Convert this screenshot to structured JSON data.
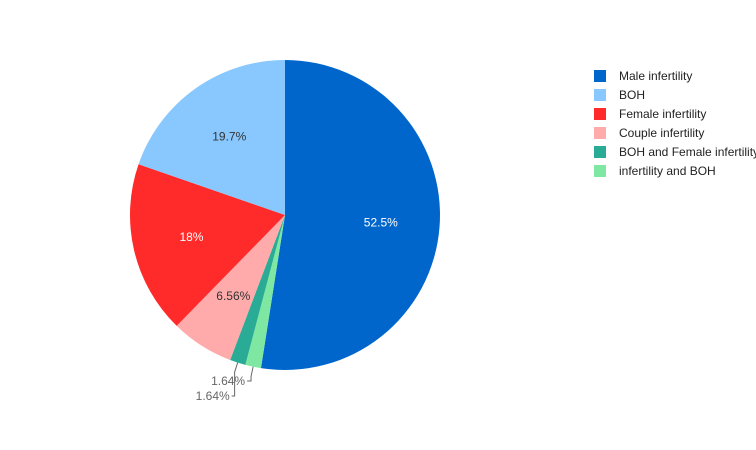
{
  "chart_data": {
    "type": "pie",
    "title": "",
    "legend_position": "right",
    "slices": [
      {
        "label": "Male infertility",
        "value": 52.5,
        "display": "52.5%",
        "color": "#0066cc",
        "label_color": "#ffffff"
      },
      {
        "label": "infertility and BOH",
        "value": 1.64,
        "display": "1.64%",
        "color": "#7ee8a2",
        "label_color": "#666666"
      },
      {
        "label": "BOH and Female infertility",
        "value": 1.64,
        "display": "1.64%",
        "color": "#2aab95",
        "label_color": "#666666"
      },
      {
        "label": "Couple infertility",
        "value": 6.56,
        "display": "6.56%",
        "color": "#ffabab",
        "label_color": "#333333"
      },
      {
        "label": "Female infertility",
        "value": 18,
        "display": "18%",
        "color": "#ff2a2a",
        "label_color": "#ffffff"
      },
      {
        "label": "BOH",
        "value": 19.7,
        "display": "19.7%",
        "color": "#88c8ff",
        "label_color": "#333333"
      }
    ],
    "legend_order": [
      "Male infertility",
      "BOH",
      "Female infertility",
      "Couple infertility",
      "BOH and Female infertility",
      "infertility and BOH"
    ]
  }
}
